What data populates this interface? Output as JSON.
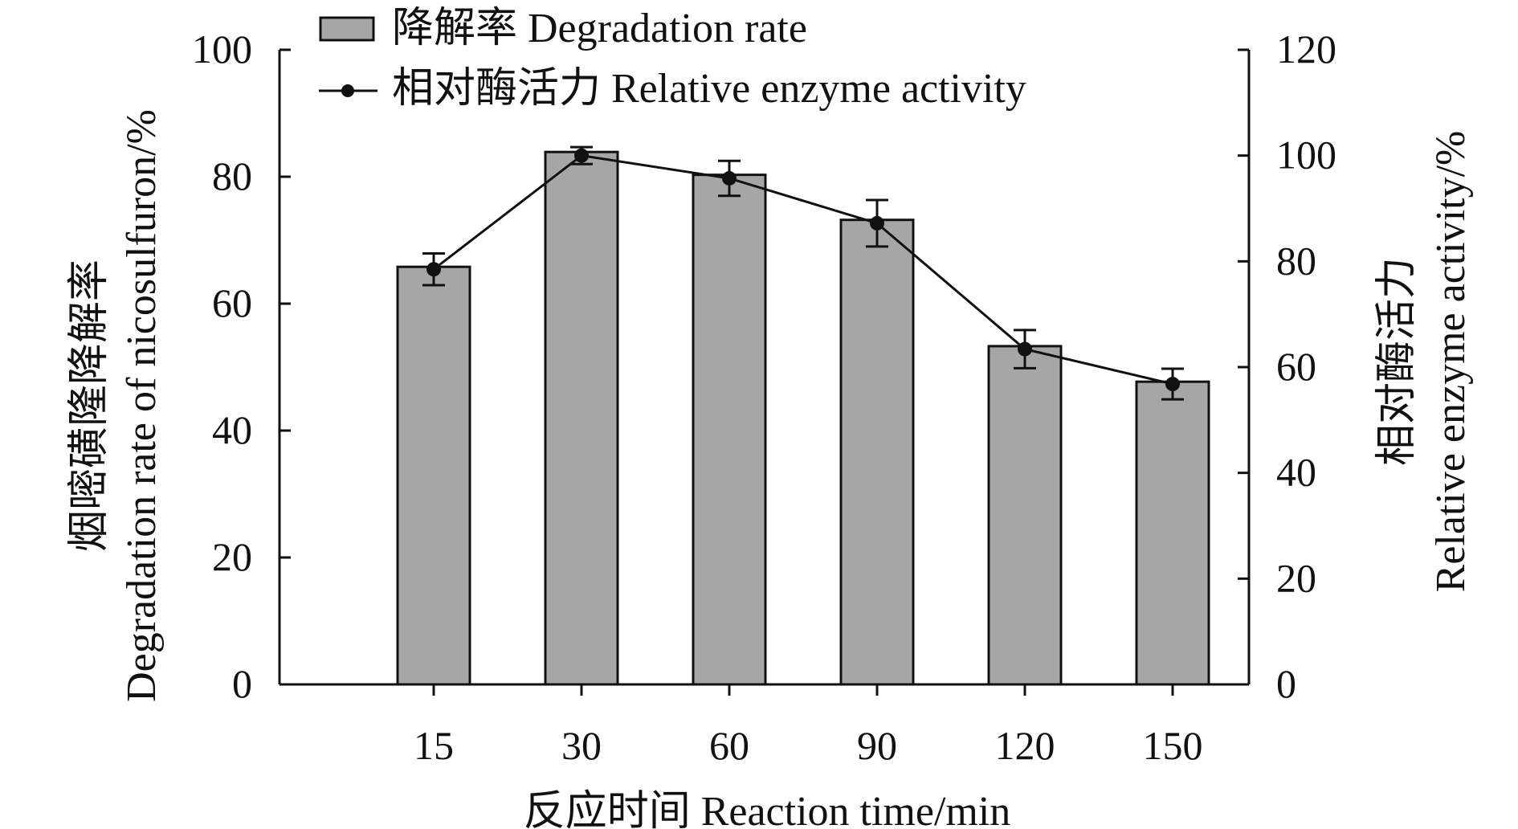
{
  "chart_data": {
    "type": "bar+line",
    "categories": [
      "15",
      "30",
      "60",
      "90",
      "120",
      "150"
    ],
    "xlabel": "反应时间 Reaction time/min",
    "ylabel_left": [
      "烟嘧磺隆降解率",
      "Degradation rate of nicosulfuron/%"
    ],
    "ylabel_right": [
      "相对酶活力",
      "Relative enzyme activity/%"
    ],
    "ylim_left": [
      0,
      100
    ],
    "ylim_right": [
      0,
      120
    ],
    "yticks_left": [
      0,
      20,
      40,
      60,
      80,
      100
    ],
    "yticks_right": [
      0,
      20,
      40,
      60,
      80,
      100,
      120
    ],
    "grid": false,
    "legend_position": "top",
    "series": [
      {
        "name": "降解率 Degradation rate",
        "type": "bar",
        "axis": "left",
        "color": "#a6a6a6",
        "values": [
          65.8,
          83.9,
          80.3,
          73.2,
          53.3,
          47.7
        ],
        "errors": [
          0,
          0,
          0,
          0,
          0,
          0
        ]
      },
      {
        "name": "相对酶活力 Relative enzyme activity",
        "type": "line",
        "axis": "right",
        "color": "#111111",
        "values": [
          78.5,
          100.0,
          95.7,
          87.2,
          63.4,
          56.8
        ],
        "errors": [
          3.0,
          1.6,
          3.3,
          4.4,
          3.6,
          2.9
        ]
      }
    ]
  }
}
